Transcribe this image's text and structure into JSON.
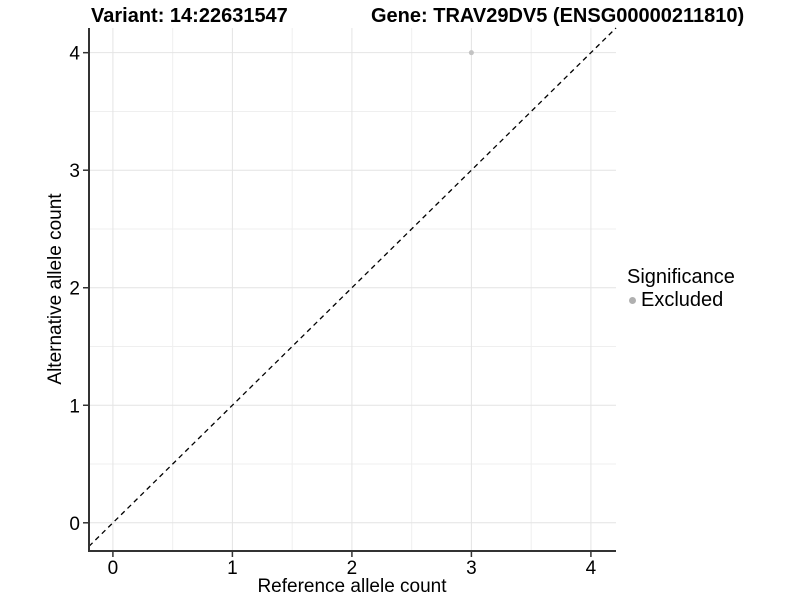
{
  "header": {
    "variant_title": "Variant: 14:22631547",
    "gene_title": "Gene: TRAV29DV5 (ENSG00000211810)"
  },
  "chart_data": {
    "type": "scatter",
    "xlabel": "Reference allele count",
    "ylabel": "Alternative allele count",
    "xlim": [
      -0.2,
      4.21
    ],
    "ylim": [
      -0.24,
      4.21
    ],
    "xticks": [
      0,
      1,
      2,
      3,
      4
    ],
    "yticks": [
      0,
      1,
      2,
      3,
      4
    ],
    "xticks_minor": [
      0.5,
      1.5,
      2.5,
      3.5
    ],
    "yticks_minor": [
      0.5,
      1.5,
      2.5,
      3.5
    ],
    "grid": "major+minor",
    "points": [
      {
        "x": 3,
        "y": 4,
        "significance": "Excluded"
      }
    ],
    "reference_line": {
      "slope": 1,
      "intercept": 0,
      "style": "dashed"
    },
    "legend": {
      "title": "Significance",
      "position": "right",
      "items": [
        {
          "label": "Excluded",
          "color": "#b0b0b0"
        }
      ]
    },
    "colors": {
      "point": "#c3c3c3",
      "grid_major": "#e4e4e4",
      "grid_minor": "#efefef",
      "axis": "#333333",
      "reference_line": "#000000",
      "text": "#000000"
    }
  }
}
